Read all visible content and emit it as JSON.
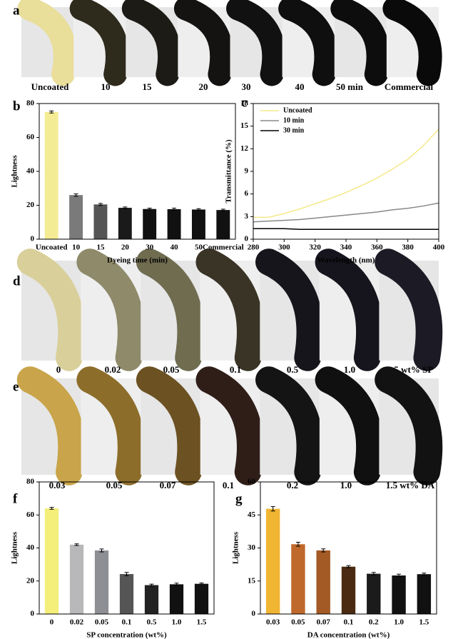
{
  "photo_panels": [
    {
      "label": "a",
      "captions": [
        "Uncoated",
        "10",
        "15",
        "20",
        "30",
        "40",
        "50 min",
        "Commercial"
      ]
    },
    {
      "label": "d",
      "captions": [
        "0",
        "0.02",
        "0.05",
        "0.1",
        "0.5",
        "1.0",
        "1.5 wt% SP"
      ]
    },
    {
      "label": "e",
      "captions": [
        "0.03",
        "0.05",
        "0.07",
        "0.1",
        "0.2",
        "1.0",
        "1.5 wt% DA"
      ]
    }
  ],
  "chart_data": [
    {
      "type": "bar",
      "label": "b",
      "xlabel": "Dyeing time (min)",
      "ylabel": "Lightness",
      "categories": [
        "Uncoated",
        "10",
        "15",
        "20",
        "30",
        "40",
        "50",
        "Commercial"
      ],
      "values": [
        75,
        26,
        20.5,
        18.5,
        17.8,
        17.7,
        17.5,
        17.2
      ],
      "errors": [
        0.6,
        0.7,
        0.6,
        0.5,
        0.5,
        0.6,
        0.5,
        0.5
      ],
      "colors": [
        "#f3ec95",
        "#7a7a7a",
        "#555555",
        "#1a1a1a",
        "#111111",
        "#111111",
        "#111111",
        "#111111"
      ],
      "ylim": [
        0,
        80
      ],
      "yticks": [
        0,
        20,
        40,
        60,
        80
      ]
    },
    {
      "type": "line",
      "label": "c",
      "xlabel": "Wavelength (nm)",
      "ylabel": "Transmittance (%)",
      "x": [
        280,
        290,
        300,
        310,
        320,
        330,
        340,
        350,
        360,
        370,
        380,
        390,
        400
      ],
      "series": [
        {
          "name": "Uncoated",
          "color": "#f5e98a",
          "values": [
            2.9,
            2.9,
            3.4,
            4.0,
            4.7,
            5.4,
            6.2,
            7.1,
            8.1,
            9.3,
            10.6,
            12.4,
            14.6
          ]
        },
        {
          "name": "10 min",
          "color": "#888888",
          "values": [
            2.3,
            2.4,
            2.5,
            2.6,
            2.8,
            3.0,
            3.2,
            3.4,
            3.6,
            3.9,
            4.1,
            4.4,
            4.8
          ]
        },
        {
          "name": "30 min",
          "color": "#000000",
          "values": [
            1.4,
            1.4,
            1.4,
            1.3,
            1.3,
            1.3,
            1.3,
            1.3,
            1.3,
            1.3,
            1.3,
            1.3,
            1.3
          ]
        }
      ],
      "xlim": [
        280,
        400
      ],
      "xticks": [
        280,
        300,
        320,
        340,
        360,
        380,
        400
      ],
      "ylim": [
        0,
        18
      ],
      "yticks": [
        0,
        3,
        6,
        9,
        12,
        15,
        18
      ]
    },
    {
      "type": "bar",
      "label": "f",
      "xlabel": "SP concentration (wt%)",
      "ylabel": "Lightness",
      "categories": [
        "0",
        "0.02",
        "0.05",
        "0.1",
        "0.5",
        "1.0",
        "1.5"
      ],
      "values": [
        64,
        42,
        38.5,
        24.2,
        17.5,
        18,
        18.3
      ],
      "errors": [
        0.6,
        0.5,
        0.9,
        1.0,
        0.6,
        0.7,
        0.5
      ],
      "colors": [
        "#f3ef7a",
        "#b8b8bb",
        "#8e8f94",
        "#555555",
        "#222222",
        "#111111",
        "#111111"
      ],
      "ylim": [
        0,
        80
      ],
      "yticks": [
        0,
        20,
        40,
        60,
        80
      ]
    },
    {
      "type": "bar",
      "label": "g",
      "xlabel": "DA concentration (wt%)",
      "ylabel": "Lightness",
      "categories": [
        "0.03",
        "0.05",
        "0.07",
        "0.1",
        "0.2",
        "1.0",
        "1.5"
      ],
      "values": [
        47.8,
        31.7,
        28.9,
        21.5,
        18.3,
        17.5,
        18.1
      ],
      "errors": [
        1.0,
        0.9,
        0.7,
        0.5,
        0.6,
        0.6,
        0.5
      ],
      "colors": [
        "#f0b533",
        "#c0692d",
        "#a35a25",
        "#4a2a10",
        "#1b1b1b",
        "#111111",
        "#111111"
      ],
      "ylim": [
        0,
        60
      ],
      "yticks": [
        0,
        15,
        30,
        45,
        60
      ]
    }
  ]
}
